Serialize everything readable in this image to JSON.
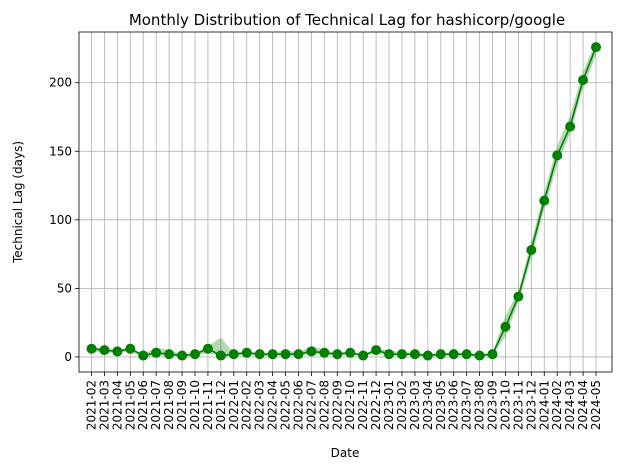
{
  "chart_data": {
    "type": "line",
    "title": "Monthly Distribution of Technical Lag for hashicorp/google",
    "xlabel": "Date",
    "ylabel": "Technical Lag (days)",
    "ylim": [
      -11,
      237
    ],
    "yticks": [
      0,
      50,
      100,
      150,
      200
    ],
    "grid": true,
    "series_color": "#008000",
    "categories": [
      "2021-02",
      "2021-03",
      "2021-04",
      "2021-05",
      "2021-06",
      "2021-07",
      "2021-08",
      "2021-09",
      "2021-10",
      "2021-11",
      "2021-12",
      "2022-01",
      "2022-02",
      "2022-03",
      "2022-04",
      "2022-05",
      "2022-06",
      "2022-07",
      "2022-08",
      "2022-09",
      "2022-10",
      "2022-11",
      "2022-12",
      "2023-01",
      "2023-02",
      "2023-03",
      "2023-04",
      "2023-05",
      "2023-06",
      "2023-07",
      "2023-08",
      "2023-09",
      "2023-10",
      "2023-11",
      "2023-12",
      "2024-01",
      "2024-02",
      "2024-03",
      "2024-04",
      "2024-05"
    ],
    "values": [
      6,
      5,
      4,
      6,
      1,
      3,
      2,
      1,
      2,
      6,
      1,
      2,
      3,
      2,
      2,
      2,
      2,
      4,
      3,
      2,
      3,
      1,
      5,
      2,
      2,
      2,
      1,
      2,
      2,
      2,
      1,
      2,
      22,
      44,
      78,
      114,
      147,
      168,
      202,
      226
    ],
    "band_lower": [
      4,
      3,
      3,
      4,
      0,
      1,
      1,
      0,
      1,
      3,
      0,
      1,
      2,
      1,
      1,
      1,
      1,
      2,
      2,
      1,
      2,
      0,
      3,
      1,
      1,
      1,
      0,
      1,
      1,
      1,
      0,
      1,
      15,
      40,
      72,
      108,
      140,
      163,
      196,
      220
    ],
    "band_upper": [
      8,
      6,
      5,
      7,
      2,
      7,
      5,
      2,
      3,
      8,
      14,
      3,
      4,
      3,
      3,
      5,
      3,
      8,
      5,
      3,
      4,
      2,
      6,
      5,
      3,
      3,
      2,
      3,
      3,
      3,
      2,
      3,
      30,
      48,
      84,
      120,
      154,
      176,
      208,
      230
    ]
  }
}
